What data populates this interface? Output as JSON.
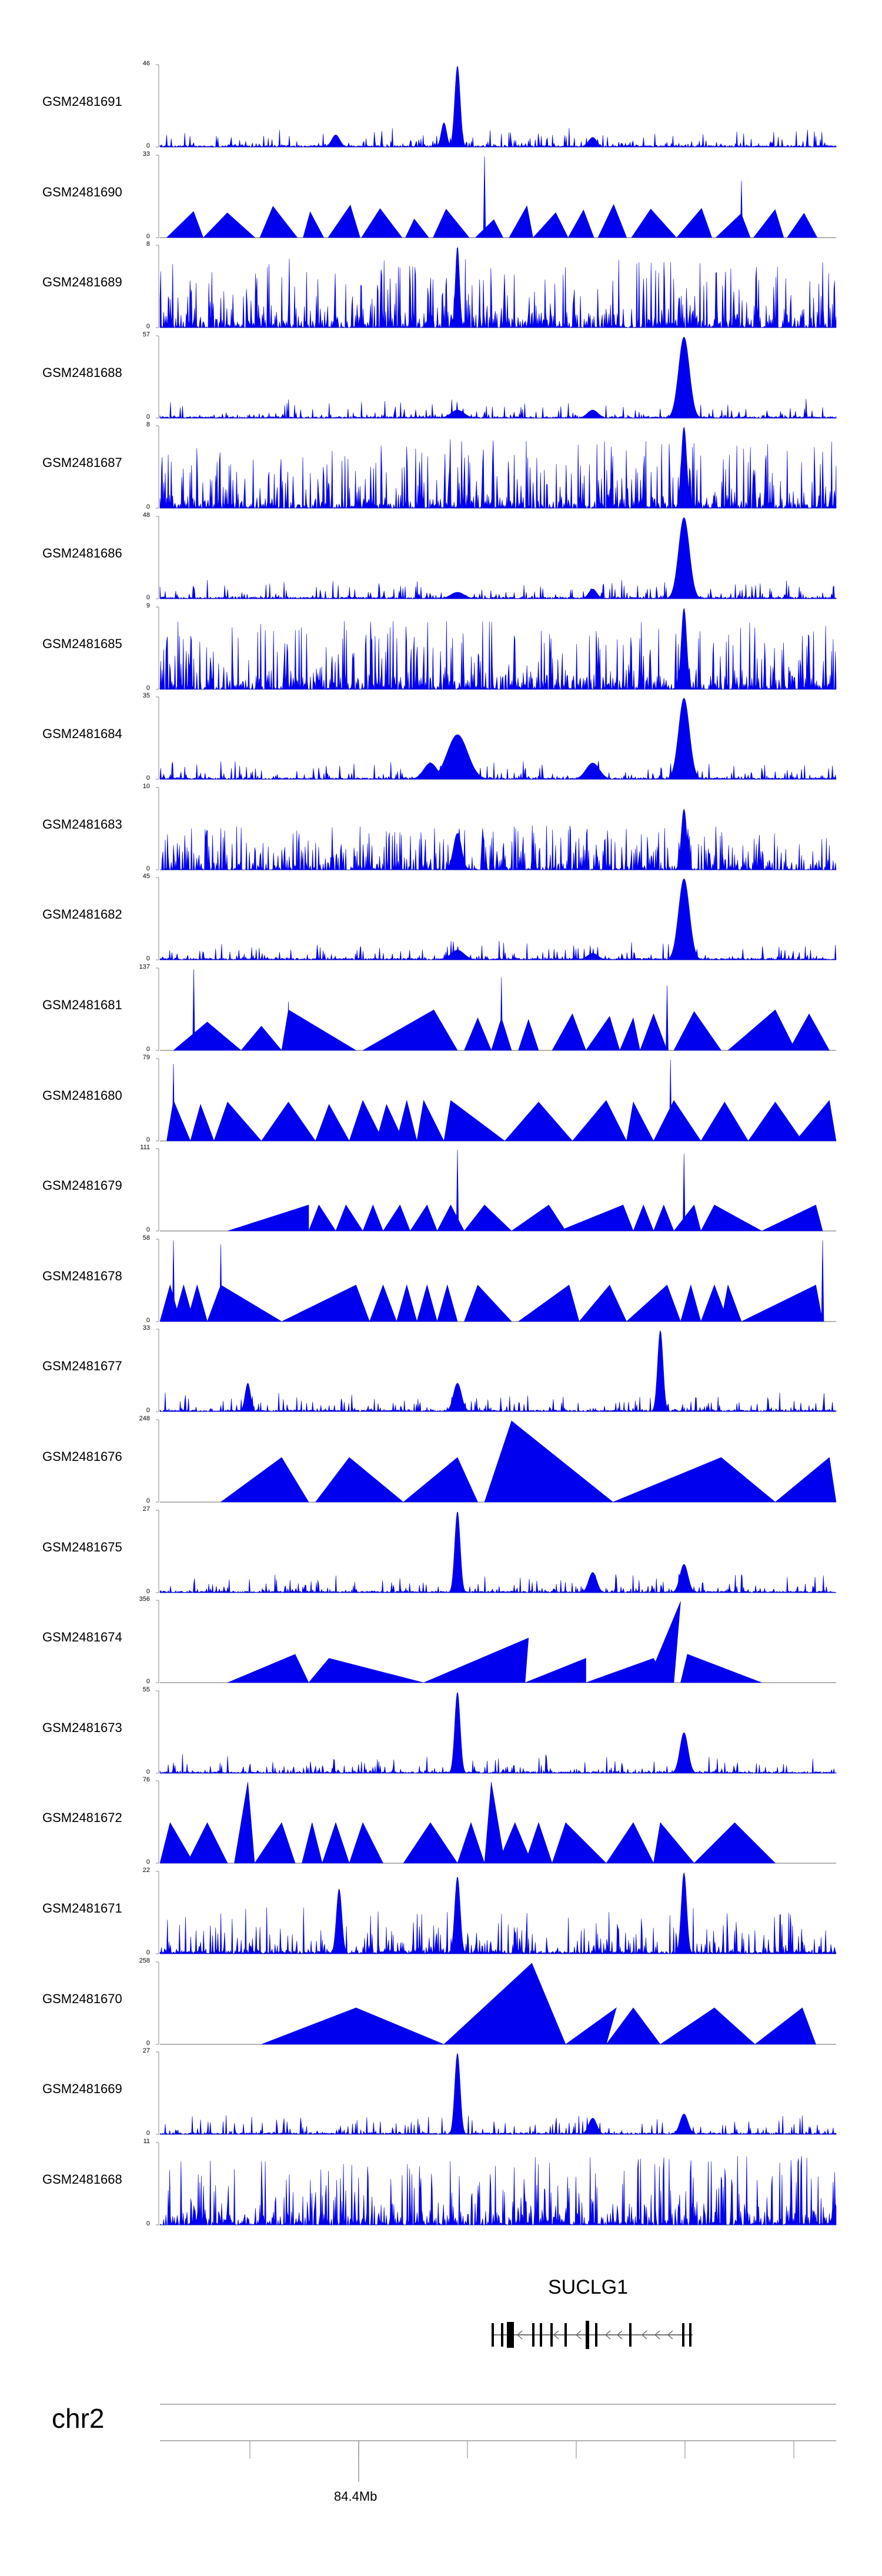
{
  "chart_data": {
    "type": "area",
    "title": "",
    "fill_color": "#0000ee",
    "baseline_color": "#666666",
    "ymin_label": "0",
    "tracks": [
      {
        "name": "GSM2481691",
        "ymax": 46,
        "pattern": "spiky",
        "peaks": [
          [
            0.44,
            1.0,
            0.004
          ],
          [
            0.42,
            0.3,
            0.004
          ],
          [
            0.26,
            0.15,
            0.006
          ],
          [
            0.64,
            0.12,
            0.006
          ]
        ]
      },
      {
        "name": "GSM2481690",
        "ymax": 33,
        "pattern": "triangles",
        "peaks": [
          [
            0.48,
            1.0,
            0.004
          ],
          [
            0.86,
            0.7,
            0.004
          ]
        ]
      },
      {
        "name": "GSM2481689",
        "ymax": 8,
        "pattern": "dense",
        "peaks": [
          [
            0.44,
            1.0,
            0.003
          ]
        ]
      },
      {
        "name": "GSM2481688",
        "ymax": 57,
        "pattern": "spiky",
        "peaks": [
          [
            0.775,
            1.0,
            0.008
          ],
          [
            0.44,
            0.1,
            0.01
          ],
          [
            0.64,
            0.1,
            0.008
          ]
        ]
      },
      {
        "name": "GSM2481687",
        "ymax": 8,
        "pattern": "dense",
        "peaks": [
          [
            0.775,
            1.0,
            0.004
          ]
        ]
      },
      {
        "name": "GSM2481686",
        "ymax": 48,
        "pattern": "spiky",
        "peaks": [
          [
            0.775,
            1.0,
            0.008
          ],
          [
            0.64,
            0.12,
            0.006
          ],
          [
            0.44,
            0.08,
            0.01
          ]
        ]
      },
      {
        "name": "GSM2481685",
        "ymax": 9,
        "pattern": "dense",
        "peaks": [
          [
            0.775,
            1.0,
            0.004
          ]
        ]
      },
      {
        "name": "GSM2481684",
        "ymax": 35,
        "pattern": "spiky",
        "peaks": [
          [
            0.775,
            1.0,
            0.008
          ],
          [
            0.44,
            0.55,
            0.015
          ],
          [
            0.4,
            0.2,
            0.01
          ],
          [
            0.64,
            0.2,
            0.01
          ]
        ]
      },
      {
        "name": "GSM2481683",
        "ymax": 10,
        "pattern": "dense-low",
        "peaks": [
          [
            0.775,
            0.75,
            0.004
          ],
          [
            0.44,
            0.45,
            0.006
          ]
        ]
      },
      {
        "name": "GSM2481682",
        "ymax": 45,
        "pattern": "spiky",
        "peaks": [
          [
            0.775,
            1.0,
            0.008
          ],
          [
            0.44,
            0.12,
            0.01
          ],
          [
            0.64,
            0.08,
            0.008
          ]
        ]
      },
      {
        "name": "GSM2481681",
        "ymax": 137,
        "pattern": "triangles",
        "peaks": [
          [
            0.05,
            1.0,
            0.003
          ],
          [
            0.19,
            0.6,
            0.003
          ],
          [
            0.505,
            0.9,
            0.003
          ],
          [
            0.75,
            0.8,
            0.003
          ]
        ]
      },
      {
        "name": "GSM2481680",
        "ymax": 79,
        "pattern": "triangles",
        "peaks": [
          [
            0.02,
            0.95,
            0.003
          ],
          [
            0.755,
            1.0,
            0.003
          ]
        ]
      },
      {
        "name": "GSM2481679",
        "ymax": 111,
        "pattern": "triangles",
        "peaks": [
          [
            0.44,
            1.0,
            0.003
          ],
          [
            0.775,
            0.95,
            0.003
          ]
        ]
      },
      {
        "name": "GSM2481678",
        "ymax": 58,
        "pattern": "triangles",
        "peaks": [
          [
            0.02,
            1.0,
            0.003
          ],
          [
            0.09,
            0.95,
            0.003
          ],
          [
            0.98,
            1.0,
            0.003
          ]
        ]
      },
      {
        "name": "GSM2481677",
        "ymax": 33,
        "pattern": "spiky",
        "peaks": [
          [
            0.74,
            1.0,
            0.004
          ],
          [
            0.44,
            0.35,
            0.006
          ],
          [
            0.13,
            0.35,
            0.004
          ]
        ]
      },
      {
        "name": "GSM2481676",
        "ymax": 248,
        "pattern": "triangles",
        "peaks": []
      },
      {
        "name": "GSM2481675",
        "ymax": 27,
        "pattern": "spiky",
        "peaks": [
          [
            0.44,
            1.0,
            0.004
          ],
          [
            0.775,
            0.35,
            0.006
          ],
          [
            0.64,
            0.25,
            0.006
          ]
        ]
      },
      {
        "name": "GSM2481674",
        "ymax": 356,
        "pattern": "triangles",
        "peaks": []
      },
      {
        "name": "GSM2481673",
        "ymax": 55,
        "pattern": "spiky",
        "peaks": [
          [
            0.44,
            1.0,
            0.004
          ],
          [
            0.775,
            0.5,
            0.006
          ]
        ]
      },
      {
        "name": "GSM2481672",
        "ymax": 76,
        "pattern": "triangles",
        "peaks": [
          [
            0.49,
            1.0,
            0.003
          ],
          [
            0.13,
            0.95,
            0.003
          ]
        ]
      },
      {
        "name": "GSM2481671",
        "ymax": 22,
        "pattern": "spiky-dense",
        "peaks": [
          [
            0.44,
            0.95,
            0.004
          ],
          [
            0.775,
            1.0,
            0.004
          ],
          [
            0.265,
            0.8,
            0.004
          ]
        ]
      },
      {
        "name": "GSM2481670",
        "ymax": 258,
        "pattern": "triangles",
        "peaks": []
      },
      {
        "name": "GSM2481669",
        "ymax": 27,
        "pattern": "spiky",
        "peaks": [
          [
            0.44,
            1.0,
            0.004
          ],
          [
            0.64,
            0.2,
            0.006
          ],
          [
            0.775,
            0.25,
            0.006
          ]
        ]
      },
      {
        "name": "GSM2481668",
        "ymax": 11,
        "pattern": "dense",
        "peaks": []
      }
    ],
    "gene": {
      "name": "SUCLG1",
      "strand": "-"
    },
    "chromosome": "chr2",
    "x_tick_label": "84.4Mb"
  }
}
